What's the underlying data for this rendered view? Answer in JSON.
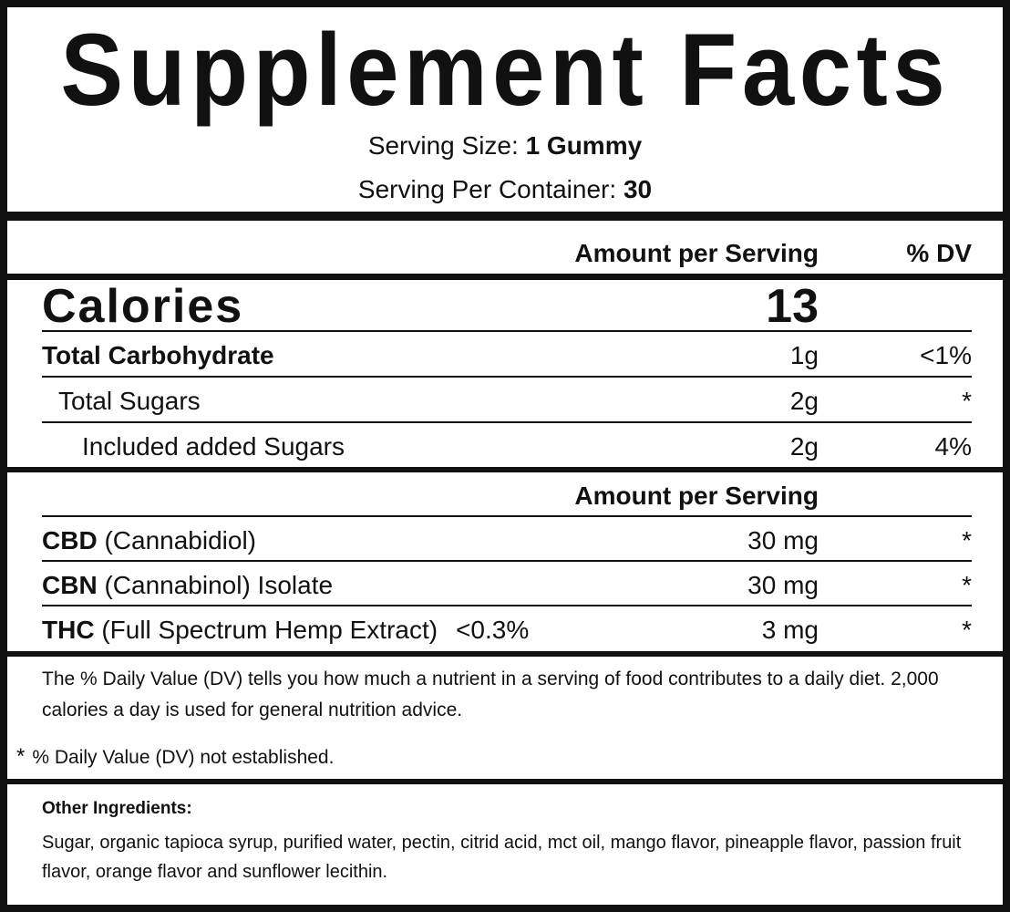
{
  "title": "Supplement Facts",
  "serving_size": {
    "label": "Serving Size:",
    "value": "1 Gummy"
  },
  "servings_per_container": {
    "label": "Serving Per Container:",
    "value": "30"
  },
  "header": {
    "amount": "Amount per Serving",
    "dv": "% DV"
  },
  "calories": {
    "label": "Calories",
    "value": "13"
  },
  "nutrients": [
    {
      "name": "Total Carbohydrate",
      "amount": "1g",
      "dv": "<1%"
    },
    {
      "name": "Total Sugars",
      "amount": "2g",
      "dv": "*"
    },
    {
      "name": "Included added Sugars",
      "amount": "2g",
      "dv": "4%"
    }
  ],
  "cannabinoid_header": "Amount per Serving",
  "cannabinoids": [
    {
      "name": "CBD",
      "detail": "(Cannabidiol)",
      "amount": "30 mg",
      "dv": "*"
    },
    {
      "name": "CBN",
      "detail": "(Cannabinol) Isolate",
      "amount": "30 mg",
      "dv": "*"
    },
    {
      "name": "THC",
      "detail": "(Full Spectrum Hemp Extract)",
      "percent": "<0.3%",
      "amount": "3 mg",
      "dv": "*"
    }
  ],
  "footnote": "The % Daily Value (DV) tells you how much a nutrient in a serving of food contributes to a daily diet. 2,000 calories a day is used for general nutrition advice.",
  "asterisk_note": {
    "symbol": "*",
    "text": "% Daily Value (DV) not established."
  },
  "other_ingredients": {
    "label": "Other Ingredients:",
    "text": "Sugar, organic tapioca syrup, purified water, pectin, citrid acid, mct oil, mango flavor, pineapple flavor, passion fruit flavor, orange flavor and sunflower lecithin."
  }
}
